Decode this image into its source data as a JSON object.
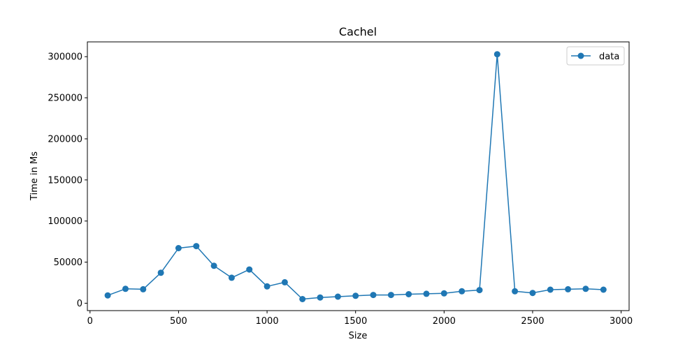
{
  "chart_data": {
    "type": "line",
    "title": "Cachel",
    "xlabel": "Size",
    "ylabel": "Time in Ms",
    "xlim": [
      -15,
      3045
    ],
    "ylim": [
      -9000,
      318000
    ],
    "xticks": [
      0,
      500,
      1000,
      1500,
      2000,
      2500,
      3000
    ],
    "yticks": [
      0,
      50000,
      100000,
      150000,
      200000,
      250000,
      300000
    ],
    "grid": false,
    "legend_position": "top-right",
    "series": [
      {
        "name": "data",
        "color": "#1f77b4",
        "marker": "circle",
        "x": [
          100,
          200,
          300,
          400,
          500,
          600,
          700,
          800,
          900,
          1000,
          1100,
          1200,
          1300,
          1400,
          1500,
          1600,
          1700,
          1800,
          1900,
          2000,
          2100,
          2200,
          2300,
          2400,
          2500,
          2600,
          2700,
          2800,
          2900
        ],
        "y": [
          9500,
          17500,
          17000,
          37000,
          67000,
          69500,
          45500,
          31000,
          41000,
          20500,
          25500,
          5000,
          7000,
          8000,
          9000,
          10000,
          10000,
          11000,
          11500,
          12000,
          14500,
          16000,
          303000,
          14500,
          12500,
          16500,
          17000,
          17500,
          16500
        ]
      }
    ]
  }
}
